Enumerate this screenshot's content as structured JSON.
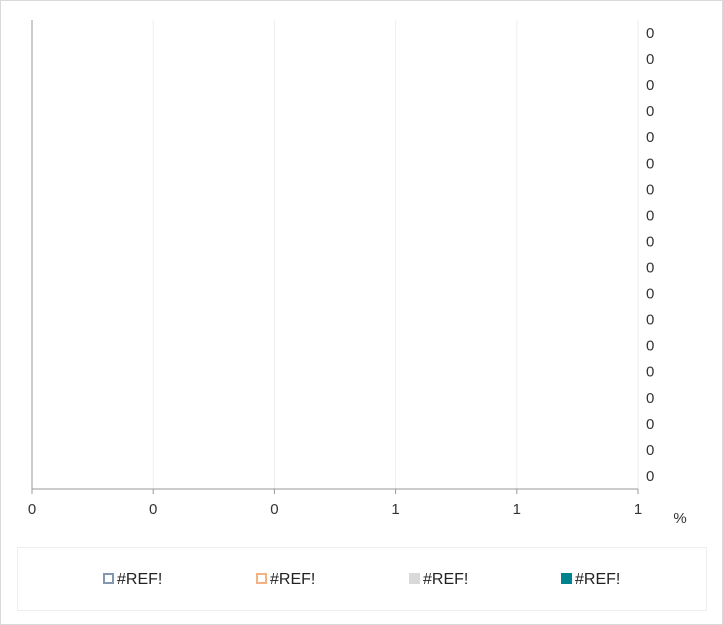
{
  "chart_data": {
    "type": "bar",
    "orientation": "horizontal",
    "stacked": true,
    "x_label": "%",
    "categories": [
      "0",
      "0",
      "0",
      "0",
      "0",
      "0",
      "0",
      "0",
      "0",
      "0",
      "0",
      "0",
      "0",
      "0",
      "0",
      "0",
      "0",
      "0"
    ],
    "series": [
      {
        "name": "#REF!",
        "color": "#8497b0",
        "style": "outline",
        "values": [
          0,
          0,
          0,
          0,
          0,
          0,
          0,
          0,
          0,
          0,
          0,
          0,
          0,
          0,
          0,
          0,
          0,
          0
        ]
      },
      {
        "name": "#REF!",
        "color": "#f4b183",
        "style": "outline",
        "values": [
          0,
          0,
          0,
          0,
          0,
          0,
          0,
          0,
          0,
          0,
          0,
          0,
          0,
          0,
          0,
          0,
          0,
          0
        ]
      },
      {
        "name": "#REF!",
        "color": "#d9d9d9",
        "style": "solid",
        "values": [
          0,
          0,
          0,
          0,
          0,
          0,
          0,
          0,
          0,
          0,
          0,
          0,
          0,
          0,
          0,
          0,
          0,
          0
        ]
      },
      {
        "name": "#REF!",
        "color": "#00838f",
        "style": "solid",
        "values": [
          0,
          0,
          0,
          0,
          0,
          0,
          0,
          0,
          0,
          0,
          0,
          0,
          0,
          0,
          0,
          0,
          0,
          0
        ]
      }
    ],
    "xlim": [
      0,
      1
    ],
    "xticks": [
      0,
      {
        "value": 0.2,
        "label": "0"
      },
      {
        "value": 0.4,
        "label": "0"
      },
      {
        "value": 0.6,
        "label": "1"
      },
      {
        "value": 0.8,
        "label": "1"
      },
      1
    ],
    "grid": true,
    "legend": "bottom"
  }
}
